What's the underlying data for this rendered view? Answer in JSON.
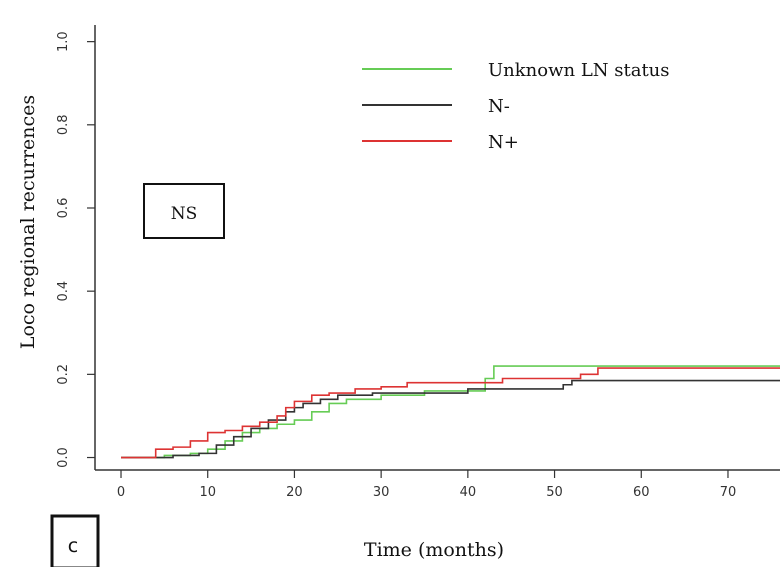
{
  "chart_data": {
    "type": "line",
    "step": true,
    "xlabel": "Time (months)",
    "ylabel": "Loco regional recurrences",
    "xlim": [
      -3,
      76
    ],
    "ylim": [
      -0.03,
      1.04
    ],
    "xticks": [
      0,
      10,
      20,
      30,
      40,
      50,
      60,
      70
    ],
    "yticks": [
      0.0,
      0.2,
      0.4,
      0.6,
      0.8,
      1.0
    ],
    "xtick_labels": [
      "0",
      "10",
      "20",
      "30",
      "40",
      "50",
      "60",
      "70"
    ],
    "ytick_labels": [
      "0.0",
      "0.2",
      "0.4",
      "0.6",
      "0.8",
      "1.0"
    ],
    "legend_position": "top-right",
    "annotation": "NS",
    "panel_label": "c",
    "series": [
      {
        "name": "Unknown LN status",
        "color": "#66cc55",
        "x": [
          0,
          5,
          8,
          10,
          12,
          14,
          16,
          18,
          20,
          22,
          24,
          26,
          30,
          35,
          42,
          43,
          76
        ],
        "y": [
          0,
          0.005,
          0.01,
          0.02,
          0.04,
          0.06,
          0.07,
          0.08,
          0.09,
          0.11,
          0.13,
          0.14,
          0.15,
          0.16,
          0.19,
          0.22,
          0.22
        ]
      },
      {
        "name": "N-",
        "color": "#333333",
        "x": [
          0,
          6,
          9,
          11,
          13,
          15,
          17,
          19,
          20,
          21,
          23,
          25,
          29,
          40,
          51,
          52,
          76
        ],
        "y": [
          0,
          0.005,
          0.01,
          0.03,
          0.05,
          0.07,
          0.09,
          0.11,
          0.12,
          0.13,
          0.14,
          0.15,
          0.155,
          0.165,
          0.175,
          0.185,
          0.185
        ]
      },
      {
        "name": "N+",
        "color": "#dd3333",
        "x": [
          0,
          4,
          6,
          8,
          10,
          12,
          14,
          16,
          18,
          19,
          20,
          22,
          24,
          27,
          30,
          33,
          44,
          53,
          55,
          76
        ],
        "y": [
          0,
          0.02,
          0.025,
          0.04,
          0.06,
          0.065,
          0.075,
          0.085,
          0.1,
          0.12,
          0.135,
          0.15,
          0.155,
          0.165,
          0.17,
          0.18,
          0.19,
          0.2,
          0.215,
          0.215
        ]
      }
    ]
  }
}
